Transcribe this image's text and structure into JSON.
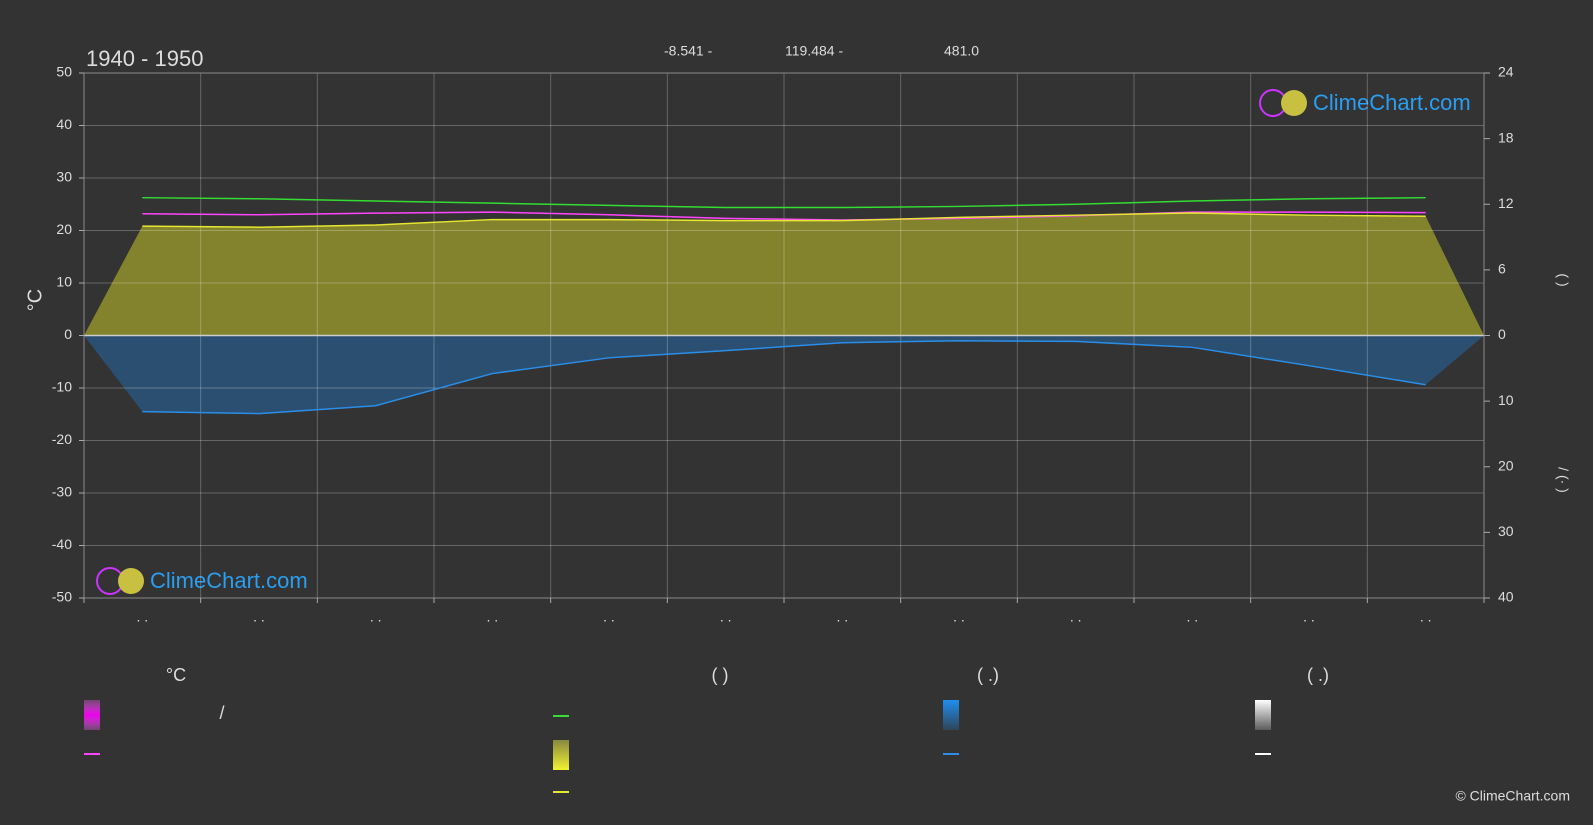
{
  "chart_data": {
    "type": "line",
    "title": "1940 - 1950",
    "location": [
      "-8.541 -",
      "119.484 -",
      "481.0"
    ],
    "categories": [
      ". .",
      ". .",
      ". .",
      ". .",
      ". .",
      ". .",
      ". .",
      ". .",
      ". .",
      ". .",
      ". .",
      ". ."
    ],
    "ylabel": "°C",
    "ylim": [
      -50,
      50
    ],
    "yticks": [
      -50,
      -40,
      -30,
      -20,
      -10,
      0,
      10,
      20,
      30,
      40,
      50
    ],
    "y2label": "(          )",
    "y2lim": [
      0,
      24
    ],
    "y2ticks": [
      0,
      6,
      12,
      18,
      24
    ],
    "y3label": "/        (·    )",
    "y3lim": [
      0,
      40
    ],
    "y3ticks": [
      10,
      20,
      30,
      40
    ],
    "grid": true,
    "series": [
      {
        "color": "#ff44ff",
        "axis": "y",
        "values": [
          23.2,
          23.0,
          23.3,
          23.5,
          23.0,
          22.3,
          22.0,
          22.3,
          22.8,
          23.5,
          23.5,
          23.4
        ]
      },
      {
        "color": "#33dd33",
        "axis": "y2",
        "values": [
          12.6,
          12.5,
          12.3,
          12.1,
          11.9,
          11.7,
          11.7,
          11.8,
          12.0,
          12.3,
          12.5,
          12.6
        ]
      },
      {
        "color": "#e6e633",
        "axis": "y2",
        "fill": "#8c8c2c",
        "values": [
          10.0,
          9.9,
          10.1,
          10.6,
          10.6,
          10.5,
          10.5,
          10.8,
          11.0,
          11.2,
          11.0,
          10.9
        ]
      },
      {
        "color": "#2a8ee8",
        "axis": "y3",
        "fill": "#2a5278",
        "values": [
          11.6,
          11.9,
          10.7,
          5.8,
          3.4,
          2.3,
          1.1,
          0.8,
          0.9,
          1.8,
          4.6,
          7.5
        ]
      }
    ],
    "legend_headers": [
      "°C",
      "(          )",
      "(    .)",
      "(    .)"
    ],
    "legend_text": "/",
    "watermark": "ClimeChart.com",
    "copyright": "© ClimeChart.com"
  }
}
